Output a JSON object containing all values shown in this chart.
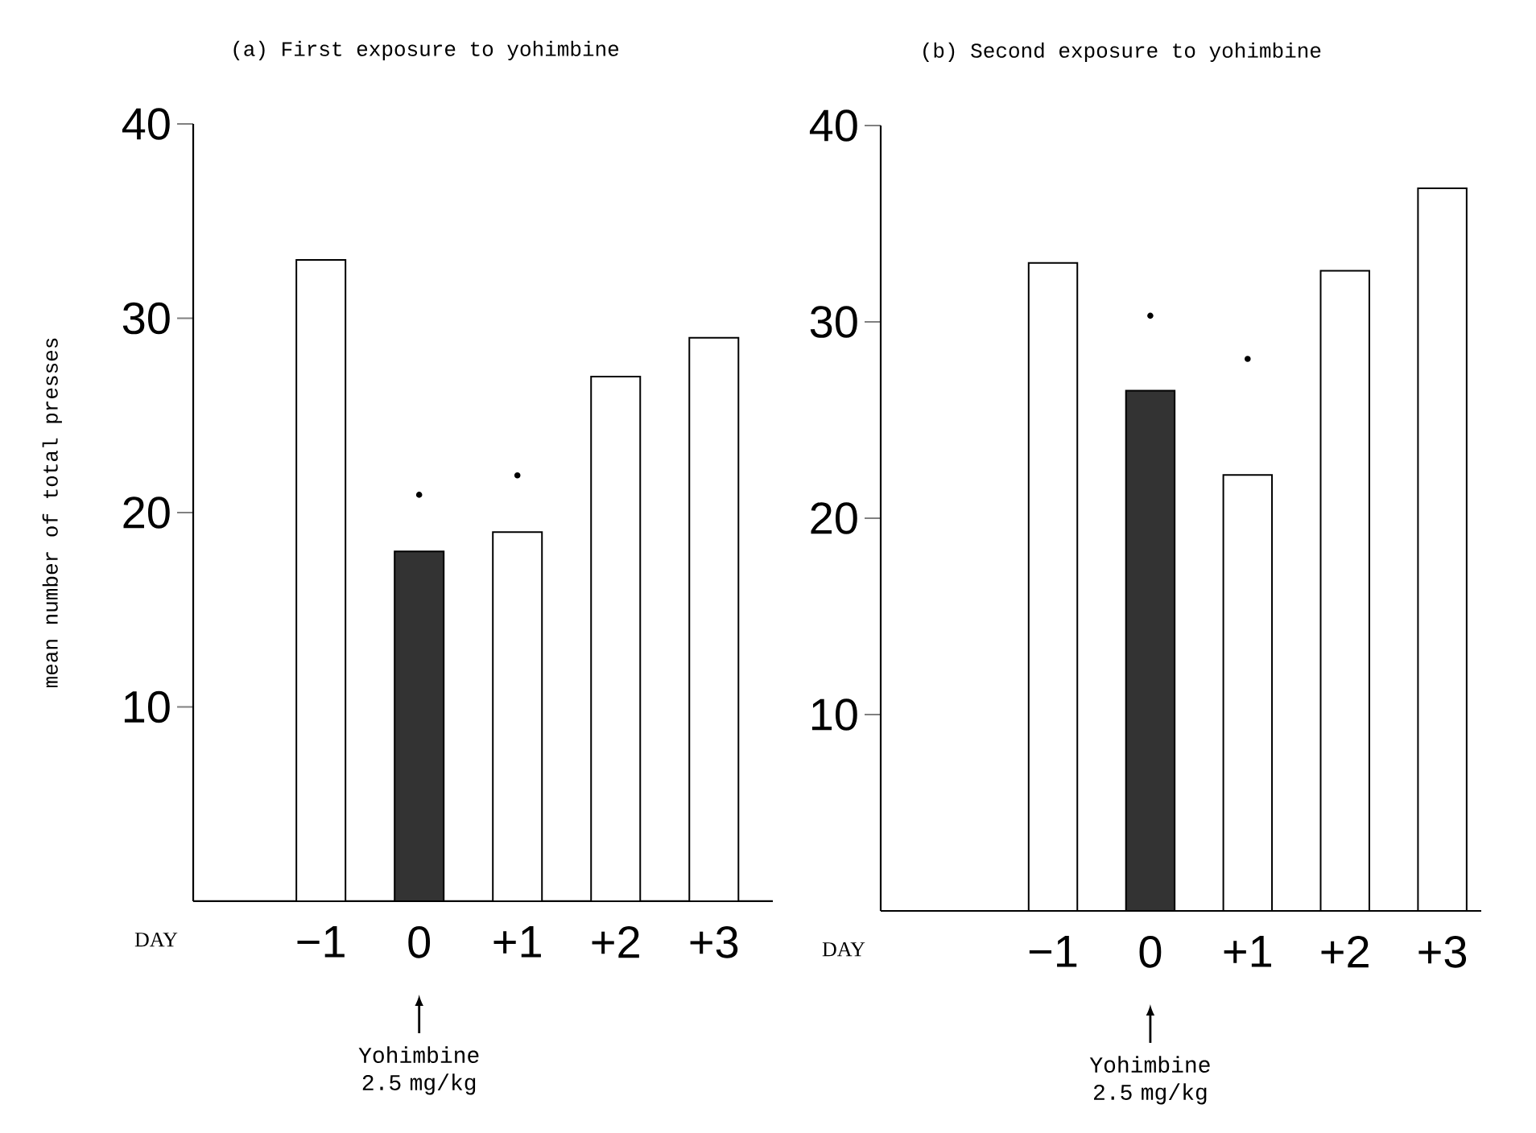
{
  "chart_data": [
    {
      "type": "bar",
      "title": "(a) First exposure to yohimbine",
      "ylabel": "mean number of total presses",
      "xlabel": "DAY",
      "categories": [
        "−1",
        "0",
        "+1",
        "+2",
        "+3"
      ],
      "values": [
        33,
        18,
        19,
        27,
        29
      ],
      "colors": [
        "#ffffff",
        "#333333",
        "#ffffff",
        "#ffffff",
        "#ffffff"
      ],
      "ylim": [
        0,
        40
      ],
      "yticks": [
        10,
        20,
        30,
        40
      ],
      "annotations": [
        "•",
        "•",
        {
          "text": "Yohimbine 2.5 mg/kg",
          "x": "0"
        }
      ]
    },
    {
      "type": "bar",
      "title": "(b) Second exposure to yohimbine",
      "xlabel": "DAY",
      "categories": [
        "−1",
        "0",
        "+1",
        "+2",
        "+3"
      ],
      "values": [
        33,
        26.5,
        22.2,
        32.6,
        36.8
      ],
      "colors": [
        "#ffffff",
        "#333333",
        "#ffffff",
        "#ffffff",
        "#ffffff"
      ],
      "ylim": [
        0,
        40
      ],
      "yticks": [
        10,
        20,
        30,
        40
      ],
      "annotations": [
        "•",
        "•",
        {
          "text": "Yohimbine 2.5 mg/kg",
          "x": "0"
        }
      ]
    }
  ]
}
